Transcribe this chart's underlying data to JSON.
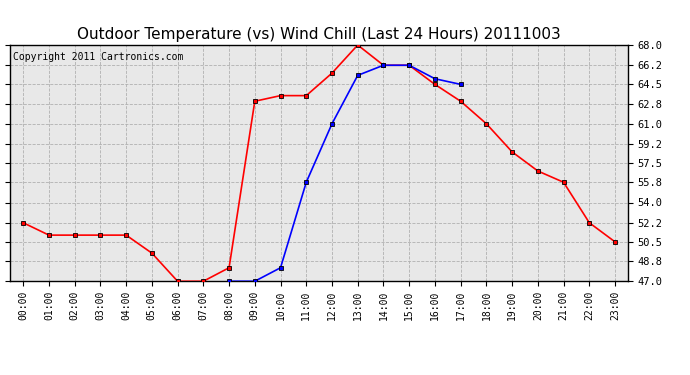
{
  "title": "Outdoor Temperature (vs) Wind Chill (Last 24 Hours) 20111003",
  "copyright": "Copyright 2011 Cartronics.com",
  "x_labels": [
    "00:00",
    "01:00",
    "02:00",
    "03:00",
    "04:00",
    "05:00",
    "06:00",
    "07:00",
    "08:00",
    "09:00",
    "10:00",
    "11:00",
    "12:00",
    "13:00",
    "14:00",
    "15:00",
    "16:00",
    "17:00",
    "18:00",
    "19:00",
    "20:00",
    "21:00",
    "22:00",
    "23:00"
  ],
  "temp_red": [
    52.2,
    51.1,
    51.1,
    51.1,
    51.1,
    49.5,
    47.0,
    47.0,
    48.2,
    63.0,
    63.5,
    63.5,
    65.5,
    68.0,
    66.2,
    66.2,
    64.5,
    63.0,
    61.0,
    58.5,
    56.8,
    55.8,
    52.2,
    50.5
  ],
  "wind_blue": [
    null,
    null,
    null,
    null,
    null,
    null,
    null,
    null,
    47.0,
    47.0,
    48.2,
    55.8,
    61.0,
    65.3,
    66.2,
    66.2,
    65.0,
    64.5,
    null,
    null,
    null,
    null,
    null,
    null
  ],
  "ylim": [
    47.0,
    68.0
  ],
  "yticks": [
    47.0,
    48.8,
    50.5,
    52.2,
    54.0,
    55.8,
    57.5,
    59.2,
    61.0,
    62.8,
    64.5,
    66.2,
    68.0
  ],
  "red_color": "#ff0000",
  "blue_color": "#0000ff",
  "bg_color": "#e8e8e8",
  "grid_color": "#b0b0b0",
  "title_fontsize": 11,
  "copyright_fontsize": 7
}
